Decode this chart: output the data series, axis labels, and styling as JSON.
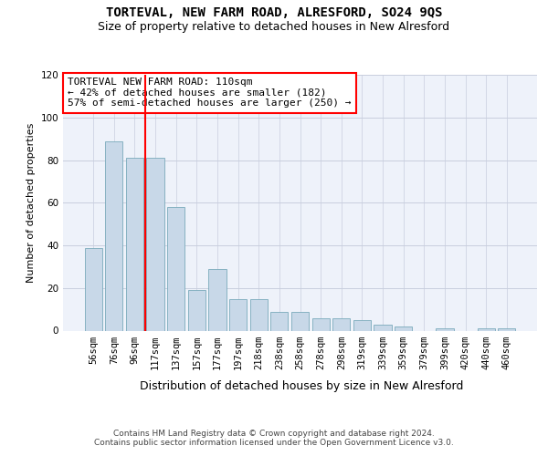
{
  "title": "TORTEVAL, NEW FARM ROAD, ALRESFORD, SO24 9QS",
  "subtitle": "Size of property relative to detached houses in New Alresford",
  "xlabel": "Distribution of detached houses by size in New Alresford",
  "ylabel": "Number of detached properties",
  "categories": [
    "56sqm",
    "76sqm",
    "96sqm",
    "117sqm",
    "137sqm",
    "157sqm",
    "177sqm",
    "197sqm",
    "218sqm",
    "238sqm",
    "258sqm",
    "278sqm",
    "298sqm",
    "319sqm",
    "339sqm",
    "359sqm",
    "379sqm",
    "399sqm",
    "420sqm",
    "440sqm",
    "460sqm"
  ],
  "values": [
    39,
    89,
    81,
    81,
    58,
    19,
    29,
    15,
    15,
    9,
    9,
    6,
    6,
    5,
    3,
    2,
    0,
    1,
    0,
    1,
    1
  ],
  "bar_color": "#c8d8e8",
  "bar_edge_color": "#7aaabb",
  "background_color": "#eef2fa",
  "grid_color": "#c8cede",
  "vline_x": 2.5,
  "vline_color": "red",
  "annotation_text": "TORTEVAL NEW FARM ROAD: 110sqm\n← 42% of detached houses are smaller (182)\n57% of semi-detached houses are larger (250) →",
  "annotation_box_color": "white",
  "annotation_box_edge_color": "red",
  "ylim": [
    0,
    120
  ],
  "yticks": [
    0,
    20,
    40,
    60,
    80,
    100,
    120
  ],
  "footer_text": "Contains HM Land Registry data © Crown copyright and database right 2024.\nContains public sector information licensed under the Open Government Licence v3.0.",
  "title_fontsize": 10,
  "subtitle_fontsize": 9,
  "xlabel_fontsize": 9,
  "ylabel_fontsize": 8,
  "tick_fontsize": 7.5,
  "annotation_fontsize": 8,
  "footer_fontsize": 6.5
}
